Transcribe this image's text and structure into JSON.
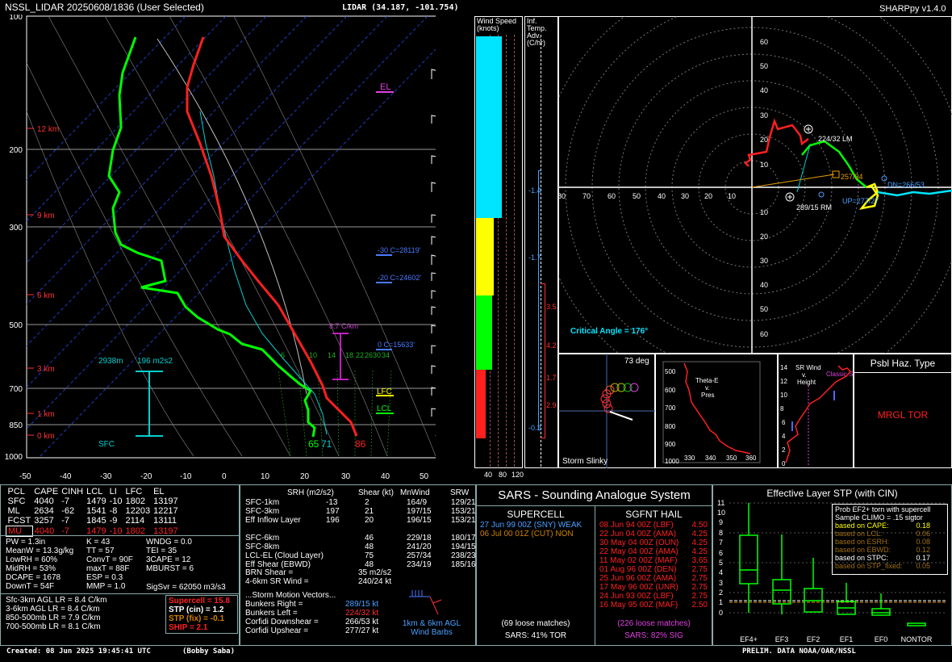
{
  "header": {
    "title": "NSSL_LIDAR  20250608/1836  (User Selected)",
    "location": "LIDAR (34.187, -101.754)",
    "version": "SHARPpy v1.4.0"
  },
  "skewt": {
    "pressure_labels": [
      "100",
      "200",
      "300",
      "500",
      "700",
      "850",
      "1000"
    ],
    "temp_ticks": [
      "-50",
      "-40",
      "-30",
      "-20",
      "-10",
      "0",
      "10",
      "20",
      "30",
      "40",
      "50"
    ],
    "height_labels": [
      "12 km",
      "9 km",
      "6 km",
      "3 km",
      "1 km",
      "0 km"
    ],
    "el_label": "EL",
    "lfc_label": "LFC",
    "lcl_label": "LCL",
    "iso_30": "-30 C=28119'",
    "iso_20": "-20 C=24602'",
    "iso_0": "0 C=15633'",
    "lapse_label": "8.7 C/km",
    "eff_layer_depth": "2938m",
    "eff_srh": "196 m2s2",
    "sfc_label": "SFC",
    "sfc_td": "65",
    "sfc_tw": "71",
    "sfc_t": "86",
    "mix_labels": [
      "6",
      "10",
      "14",
      "18",
      "22",
      "26",
      "30",
      "34"
    ]
  },
  "wind_panel": {
    "title_line1": "Wind Speed",
    "title_line2": "(knots)",
    "ticks": [
      "40",
      "80",
      "120"
    ]
  },
  "inf_panel": {
    "title_line1": "Inf. Temp.",
    "title_line2": "Adv. (C/hr)",
    "values": [
      "-1.4",
      "-1.7",
      "3.5",
      "4.2",
      "1.7",
      "2.9",
      "-0.2"
    ]
  },
  "hodograph": {
    "rings_left": [
      "80",
      "70",
      "60",
      "50",
      "40",
      "30",
      "20",
      "10"
    ],
    "rings_top": [
      "60",
      "50",
      "40",
      "30",
      "20",
      "10"
    ],
    "rings_bottom": [
      "10",
      "20",
      "30",
      "40",
      "50",
      "60"
    ],
    "lm_label": "224/32 LM",
    "rm_label": "289/15 RM",
    "mean_label": "257/34",
    "dn_label": "DN=266/53",
    "up_label": "UP=277/27",
    "critical_angle": "Critical Angle = 176°"
  },
  "slinky": {
    "deg": "73 deg",
    "title": "Storm Slinky"
  },
  "theta": {
    "title": "Theta-E\nv.\nPres",
    "y_ticks": [
      "500",
      "600",
      "700",
      "800",
      "900",
      "1000"
    ],
    "x_ticks": [
      "330",
      "340",
      "350",
      "360"
    ]
  },
  "srwind": {
    "title": "SR Wind\nv.\nHeight",
    "y_ticks": [
      "14",
      "12",
      "10",
      "8",
      "6",
      "4",
      "2",
      "0"
    ],
    "x_ticks": [
      "0",
      "20",
      "40",
      "60",
      "80"
    ],
    "annot": "Classic Supercell"
  },
  "hazard": {
    "title": "Psbl Haz. Type",
    "value": "MRGL TOR"
  },
  "thermo": {
    "headers": [
      "PCL",
      "CAPE",
      "CINH",
      "LCL",
      "LI",
      "LFC",
      "EL"
    ],
    "rows": [
      [
        "SFC",
        "4040",
        "-7",
        "1479",
        "-10",
        "1802",
        "13197"
      ],
      [
        "ML",
        "2634",
        "-62",
        "1541",
        "-8",
        "12203",
        "12217"
      ],
      [
        "FCST",
        "3257",
        "-7",
        "1845",
        "-9",
        "2114",
        "13111"
      ],
      [
        "MU",
        "4040",
        "-7",
        "1479",
        "-10",
        "1802",
        "13197"
      ]
    ],
    "col1": [
      "PW = 1.3in",
      "MeanW = 13.3g/kg",
      "LowRH = 60%",
      "MidRH = 53%",
      "DCAPE = 1678",
      "DownT = 54F"
    ],
    "col2": [
      "K = 43",
      "TT = 57",
      "ConvT = 90F",
      "maxT = 88F",
      "ESP = 0.3",
      "MMP = 1.0"
    ],
    "col3": [
      "WNDG = 0.0",
      "TEI = 35",
      "3CAPE = 12",
      "MBURST = 6",
      "",
      ""
    ],
    "sigsvr": "SigSvr = 62050 m3/s3",
    "lapse": [
      "Sfc-3km AGL LR = 8.4 C/km",
      "3-6km AGL LR = 8.4 C/km",
      "850-500mb LR = 7.9 C/km",
      "700-500mb LR = 8.1 C/km"
    ],
    "composites": [
      {
        "text": "Supercell = 15.8",
        "color": "#ff2020"
      },
      {
        "text": "STP (cin) = 1.2",
        "color": "#ffffff"
      },
      {
        "text": "STP (fix) = -0.1",
        "color": "#d08000"
      },
      {
        "text": "SHIP = 2.1",
        "color": "#ff2020"
      }
    ]
  },
  "kinematic": {
    "headers": [
      "SRH (m2/s2)",
      "Shear (kt)",
      "MnWind",
      "SRW"
    ],
    "rows": [
      [
        "SFC-1km",
        "-13",
        "2",
        "164/9",
        "129/21"
      ],
      [
        "SFC-3km",
        "197",
        "21",
        "197/15",
        "153/21"
      ],
      [
        "Eff Inflow Layer",
        "196",
        "20",
        "196/15",
        "153/21"
      ],
      [
        "SFC-6km",
        "",
        "46",
        "229/18",
        "180/17"
      ],
      [
        "SFC-8km",
        "",
        "48",
        "241/20",
        "194/15"
      ],
      [
        "LCL-EL (Cloud Layer)",
        "",
        "75",
        "257/34",
        "238/23"
      ],
      [
        "Eff Shear (EBWD)",
        "",
        "48",
        "234/19",
        "185/16"
      ]
    ],
    "brn": [
      "BRN Shear =",
      "35 m2/s2"
    ],
    "srwind46": [
      "4-6km SR Wind =",
      "240/24 kt"
    ],
    "vectors_title": "...Storm Motion Vectors...",
    "vectors": [
      {
        "label": "Bunkers Right =",
        "value": "289/15 kt",
        "color": "#4aa0ff"
      },
      {
        "label": "Bunkers Left =",
        "value": "224/32 kt",
        "color": "#ff3030"
      },
      {
        "label": "Corfidi Downshear =",
        "value": "266/53 kt",
        "color": "#ffffff"
      },
      {
        "label": "Corfidi Upshear =",
        "value": "277/27 kt",
        "color": "#ffffff"
      }
    ],
    "barb_note": "1km & 6km AGL\nWind Barbs"
  },
  "sars": {
    "title": "SARS - Sounding Analogue System",
    "supercell_title": "SUPERCELL",
    "hail_title": "SGFNT HAIL",
    "supercell": [
      {
        "name": "27 Jun 99 00Z (SNY)",
        "val": "WEAK",
        "color": "#4aa0ff"
      },
      {
        "name": "06 Jul 00 01Z (CUT)",
        "val": "NON",
        "color": "#d08000"
      }
    ],
    "hail": [
      [
        "08 Jun 94 00Z (LBF)",
        "4.50"
      ],
      [
        "22 Jun 04 00Z (AMA)",
        "4.25"
      ],
      [
        "30 May 04 00Z (OUN)",
        "4.25"
      ],
      [
        "22 May 04 00Z (AMA)",
        "4.25"
      ],
      [
        "11 May 02 00Z (MAF)",
        "3.65"
      ],
      [
        "01 Aug 96 00Z (DEN)",
        "2.75"
      ],
      [
        "25 Jun 96 00Z (AMA)",
        "2.75"
      ],
      [
        "17 May 96 00Z (UNR)",
        "2.75"
      ],
      [
        "24 Jun 93 00Z (LBF)",
        "2.75"
      ],
      [
        "16 May 95 00Z (MAF)",
        "2.50"
      ]
    ],
    "sup_loose": "(69 loose matches)",
    "sup_prob": "SARS: 41% TOR",
    "hail_loose": "(226 loose matches)",
    "hail_prob": "SARS: 82% SIG"
  },
  "stp": {
    "title": "Effective Layer STP (with CIN)",
    "y_ticks": [
      "11",
      "10",
      "9",
      "8",
      "7",
      "6",
      "5",
      "4",
      "3",
      "2",
      "1",
      "0"
    ],
    "categories": [
      "EF4+",
      "EF3",
      "EF2",
      "EF1",
      "EF0",
      "NONTOR"
    ],
    "legend_title": "Prob EF2+ torn with supercell",
    "legend_sub": "Sample CLIMO = .15 sigtor",
    "legend": [
      {
        "label": "based on CAPE:",
        "val": "0.18",
        "color": "#ffff00"
      },
      {
        "label": "based on LCL:",
        "val": "0.06",
        "color": "#a07010"
      },
      {
        "label": "based on ESRH:",
        "val": "0.08",
        "color": "#a07010"
      },
      {
        "label": "based on EBWD:",
        "val": "0.12",
        "color": "#a07010"
      },
      {
        "label": "based on STPC:",
        "val": "0.17",
        "color": "#ffffff"
      },
      {
        "label": "based on STP_fixed:",
        "val": "0.05",
        "color": "#a07010"
      }
    ]
  },
  "footer": {
    "created": "Created: 08 Jun 2025 19:45:41 UTC",
    "author": "(Bobby Saba)",
    "prelim": "PRELIM. DATA NOAA/OAR/NSSL"
  }
}
